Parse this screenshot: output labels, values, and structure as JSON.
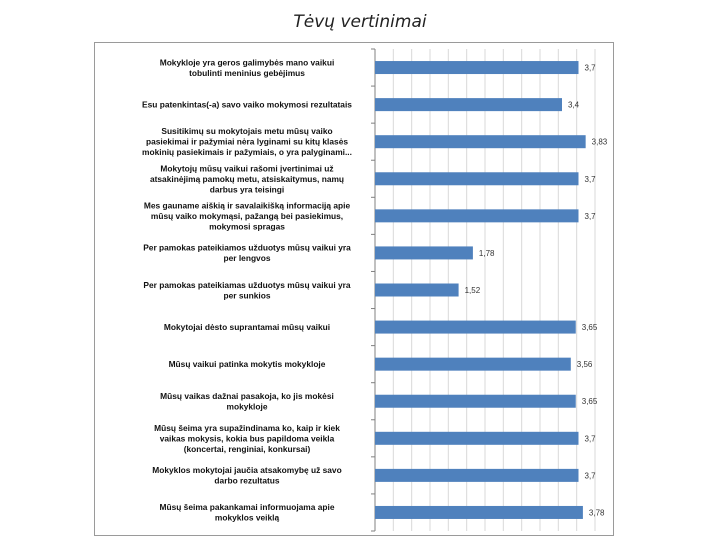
{
  "title": "Tėvų vertinimai",
  "chart_data": {
    "type": "bar",
    "orientation": "horizontal",
    "title": "",
    "xlabel": "",
    "ylabel": "",
    "xlim": [
      0,
      4
    ],
    "grid": true,
    "legend": "none",
    "bar_color": "#4f81bd",
    "categories": [
      [
        "Mokykloje yra geros galimybės mano vaikui",
        "tobulinti meninius gebėjimus"
      ],
      [
        "Esu patenkintas(-a) savo vaiko mokymosi rezultatais"
      ],
      [
        "Susitikimų su mokytojais metu mūsų vaiko",
        "pasiekimai ir pažymiai nėra lyginami su kitų klasės",
        "mokinių pasiekimais ir pažymiais, o yra palyginami..."
      ],
      [
        "Mokytojų mūsų vaikui rašomi įvertinimai už",
        "atsakinėjimą pamokų metu, atsiskaitymus, namų",
        "darbus yra teisingi"
      ],
      [
        "Mes gauname aiškią ir savalaikišką informaciją apie",
        "mūsų vaiko mokymąsi, pažangą bei pasiekimus,",
        "mokymosi spragas"
      ],
      [
        "Per pamokas pateikiamos užduotys mūsų vaikui yra",
        "per lengvos"
      ],
      [
        "Per pamokas pateikiamas užduotys mūsų vaikui yra",
        "per sunkios"
      ],
      [
        "Mokytojai dėsto suprantamai mūsų vaikui"
      ],
      [
        "Mūsų vaikui patinka mokytis mokykloje"
      ],
      [
        "Mūsų vaikas dažnai pasakoja, ko jis mokėsi",
        "mokykloje"
      ],
      [
        "Mūsų šeima yra supažindinama ko, kaip ir kiek",
        "vaikas mokysis, kokia bus papildoma veikla",
        "(koncertai, renginiai, konkursai)"
      ],
      [
        "Mokyklos mokytojai jaučia atsakomybę už savo",
        "darbo rezultatus"
      ],
      [
        "Mūsų šeima pakankamai informuojama apie",
        "mokyklos veiklą"
      ]
    ],
    "values": [
      3.7,
      3.4,
      3.83,
      3.7,
      3.7,
      1.78,
      1.52,
      3.65,
      3.56,
      3.65,
      3.7,
      3.7,
      3.78
    ],
    "value_labels": [
      "3,7",
      "3,4",
      "3,83",
      "3,7",
      "3,7",
      "1,78",
      "1,52",
      "3,65",
      "3,56",
      "3,65",
      "3,7",
      "3,7",
      "3,78"
    ]
  }
}
